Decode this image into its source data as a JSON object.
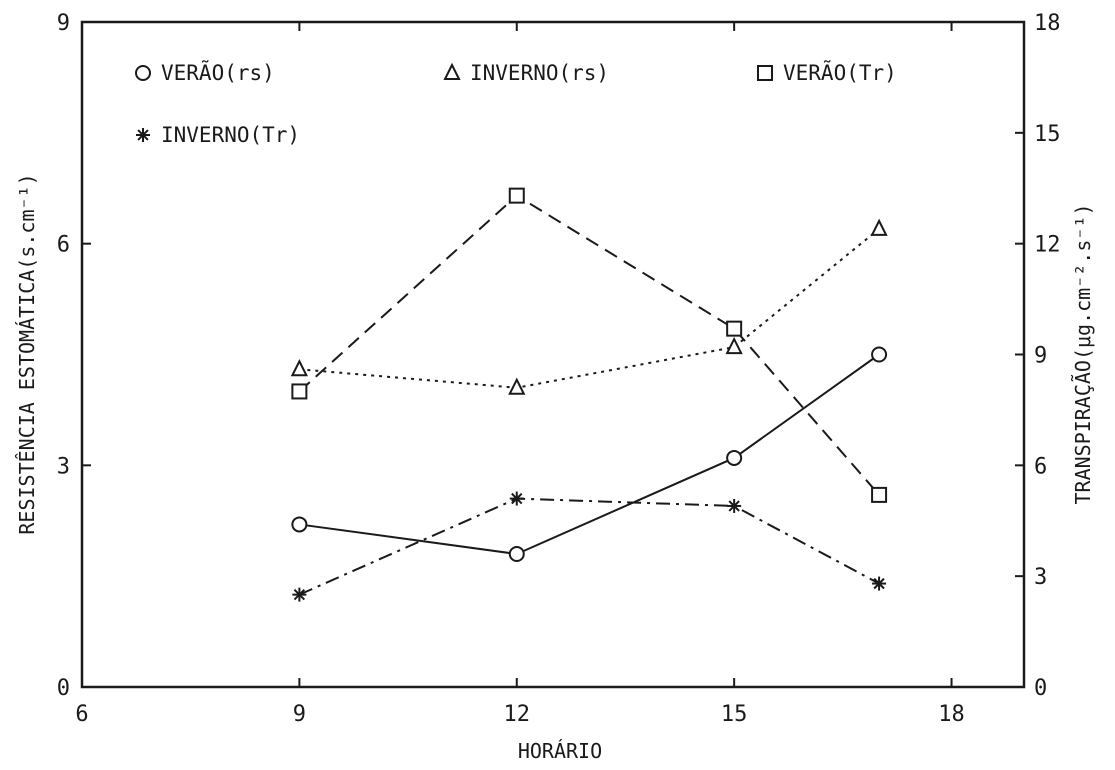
{
  "chart_data": {
    "type": "line",
    "xlabel": "HORÁRIO",
    "ylabel_left": "RESISTÊNCIA ESTOMÁTICA(s.cm⁻¹)",
    "ylabel_right": "TRANSPIRAÇÃO(μg.cm⁻².s⁻¹)",
    "xlim": [
      6,
      19
    ],
    "ylim_left": [
      0,
      9
    ],
    "ylim_right": [
      0,
      18
    ],
    "x_ticks": [
      6,
      9,
      12,
      15,
      18
    ],
    "y_ticks_left": [
      0,
      3,
      6,
      9
    ],
    "y_tick_labels_left": [
      "0",
      "3",
      "6",
      "9"
    ],
    "y_ticks_right": [
      0,
      3,
      6,
      9,
      12,
      15,
      18
    ],
    "y_tick_labels_right": [
      "0",
      "3",
      "6",
      "9",
      "12",
      "15",
      "18"
    ],
    "grid": false,
    "legend_position": "top-left",
    "series": [
      {
        "name": "VERÃO(rs)",
        "axis": "left",
        "marker": "circle",
        "line": "solid",
        "x": [
          9,
          12,
          15,
          17
        ],
        "y": [
          2.2,
          1.8,
          3.1,
          4.5
        ]
      },
      {
        "name": "INVERNO(rs)",
        "axis": "left",
        "marker": "triangle",
        "line": "dotted",
        "x": [
          9,
          12,
          15,
          17
        ],
        "y": [
          4.3,
          4.05,
          4.6,
          6.2
        ]
      },
      {
        "name": "VERÃO(Tr)",
        "axis": "right",
        "marker": "square",
        "line": "dashed",
        "x": [
          9,
          12,
          15,
          17
        ],
        "y": [
          8.0,
          13.3,
          9.7,
          5.2
        ]
      },
      {
        "name": "INVERNO(Tr)",
        "axis": "right",
        "marker": "asterisk",
        "line": "dashdot",
        "x": [
          9,
          12,
          15,
          17
        ],
        "y": [
          2.5,
          5.1,
          4.9,
          2.8
        ]
      }
    ],
    "legend": [
      {
        "label": "VERÃO(rs)",
        "marker": "circle"
      },
      {
        "label": "INVERNO(rs)",
        "marker": "triangle"
      },
      {
        "label": "VERÃO(Tr)",
        "marker": "square"
      },
      {
        "label": "INVERNO(Tr)",
        "marker": "asterisk"
      }
    ],
    "colors": {
      "ink": "#1a1a1a",
      "background": "#ffffff"
    }
  }
}
